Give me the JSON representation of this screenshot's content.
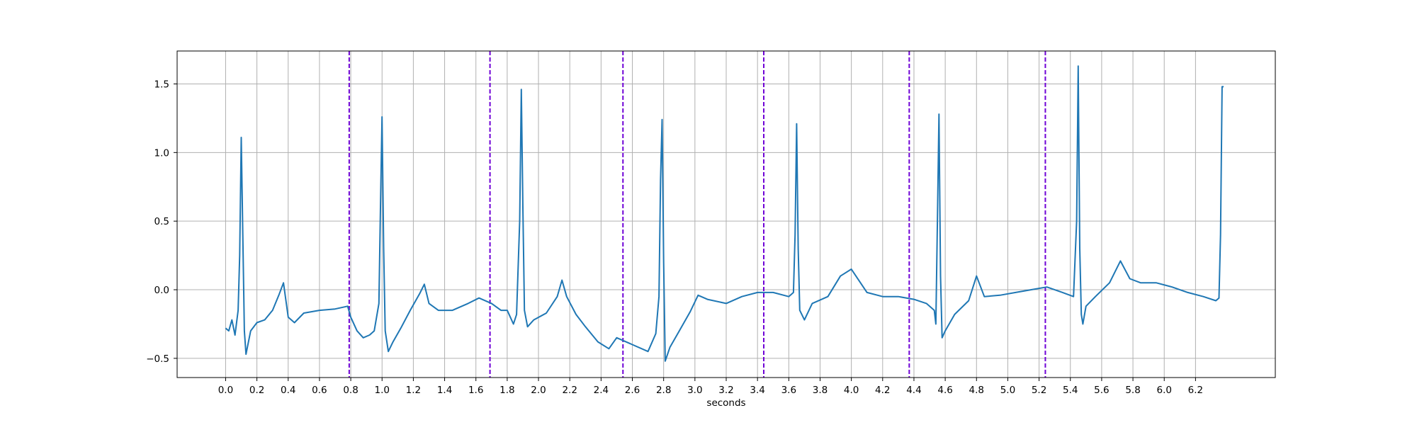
{
  "chart_data": {
    "type": "line",
    "title": "",
    "xlabel": "seconds",
    "ylabel": "",
    "xlim": [
      -0.31,
      6.71
    ],
    "ylim": [
      -0.64,
      1.74
    ],
    "grid": true,
    "legend": "none",
    "colors": {
      "signal": "#1f77b4",
      "markers": "#6f00d6"
    },
    "x_ticks": [
      0.0,
      0.2,
      0.4,
      0.6,
      0.8,
      1.0,
      1.2,
      1.4,
      1.6,
      1.8,
      2.0,
      2.2,
      2.4,
      2.6,
      2.8,
      3.0,
      3.2,
      3.4,
      3.6,
      3.8,
      4.0,
      4.2,
      4.4,
      4.6,
      4.8,
      5.0,
      5.2,
      5.4,
      5.6,
      5.8,
      6.0,
      6.2
    ],
    "x_tick_labels": [
      "0.0",
      "0.2",
      "0.4",
      "0.6",
      "0.8",
      "1.0",
      "1.2",
      "1.4",
      "1.6",
      "1.8",
      "2.0",
      "2.2",
      "2.4",
      "2.6",
      "2.8",
      "3.0",
      "3.2",
      "3.4",
      "3.6",
      "3.8",
      "4.0",
      "4.2",
      "4.4",
      "4.6",
      "4.8",
      "5.0",
      "5.2",
      "5.4",
      "5.6",
      "5.8",
      "6.0",
      "6.2"
    ],
    "y_ticks": [
      -0.5,
      0.0,
      0.5,
      1.0,
      1.5
    ],
    "y_tick_labels": [
      "−0.5",
      "0.0",
      "0.5",
      "1.0",
      "1.5"
    ],
    "vertical_markers": [
      0.79,
      1.69,
      2.54,
      3.44,
      4.37,
      5.24
    ],
    "series": [
      {
        "x": [
          0.0,
          0.02,
          0.04,
          0.06,
          0.08,
          0.09,
          0.1,
          0.11,
          0.12,
          0.13,
          0.16,
          0.2,
          0.25,
          0.3,
          0.34,
          0.37,
          0.4,
          0.44,
          0.5,
          0.6,
          0.7,
          0.78,
          0.8,
          0.84,
          0.88,
          0.92,
          0.95,
          0.98,
          0.99,
          1.0,
          1.01,
          1.02,
          1.04,
          1.07,
          1.12,
          1.18,
          1.24,
          1.27,
          1.3,
          1.36,
          1.45,
          1.55,
          1.62,
          1.7,
          1.76,
          1.8,
          1.84,
          1.86,
          1.88,
          1.89,
          1.9,
          1.91,
          1.93,
          1.97,
          2.05,
          2.12,
          2.15,
          2.18,
          2.24,
          2.3,
          2.38,
          2.45,
          2.5,
          2.6,
          2.7,
          2.75,
          2.77,
          2.78,
          2.79,
          2.8,
          2.81,
          2.84,
          2.9,
          2.97,
          3.02,
          3.08,
          3.2,
          3.3,
          3.4,
          3.5,
          3.6,
          3.63,
          3.64,
          3.65,
          3.66,
          3.67,
          3.7,
          3.75,
          3.85,
          3.93,
          4.0,
          4.1,
          4.2,
          4.3,
          4.4,
          4.48,
          4.53,
          4.54,
          4.55,
          4.56,
          4.57,
          4.58,
          4.6,
          4.66,
          4.75,
          4.8,
          4.85,
          4.95,
          5.05,
          5.15,
          5.25,
          5.35,
          5.42,
          5.44,
          5.45,
          5.46,
          5.47,
          5.48,
          5.5,
          5.56,
          5.65,
          5.72,
          5.78,
          5.85,
          5.95,
          6.05,
          6.15,
          6.25,
          6.33,
          6.35,
          6.36,
          6.37,
          6.38
        ],
        "y": [
          -0.28,
          -0.3,
          -0.22,
          -0.33,
          -0.15,
          0.25,
          1.11,
          0.4,
          -0.3,
          -0.47,
          -0.3,
          -0.24,
          -0.22,
          -0.15,
          -0.04,
          0.05,
          -0.2,
          -0.24,
          -0.17,
          -0.15,
          -0.14,
          -0.12,
          -0.2,
          -0.3,
          -0.35,
          -0.33,
          -0.3,
          -0.1,
          0.6,
          1.26,
          0.3,
          -0.3,
          -0.45,
          -0.38,
          -0.28,
          -0.15,
          -0.03,
          0.04,
          -0.1,
          -0.15,
          -0.15,
          -0.1,
          -0.06,
          -0.1,
          -0.15,
          -0.15,
          -0.25,
          -0.18,
          0.5,
          1.46,
          0.6,
          -0.15,
          -0.27,
          -0.22,
          -0.17,
          -0.05,
          0.07,
          -0.05,
          -0.18,
          -0.27,
          -0.38,
          -0.43,
          -0.35,
          -0.4,
          -0.45,
          -0.32,
          -0.05,
          0.8,
          1.24,
          0.2,
          -0.52,
          -0.42,
          -0.3,
          -0.16,
          -0.04,
          -0.07,
          -0.1,
          -0.05,
          -0.02,
          -0.02,
          -0.05,
          -0.02,
          0.4,
          1.21,
          0.3,
          -0.15,
          -0.22,
          -0.1,
          -0.05,
          0.1,
          0.15,
          -0.02,
          -0.05,
          -0.05,
          -0.07,
          -0.1,
          -0.15,
          -0.25,
          0.5,
          1.28,
          0.1,
          -0.35,
          -0.3,
          -0.18,
          -0.08,
          0.1,
          -0.05,
          -0.04,
          -0.02,
          0.0,
          0.02,
          -0.02,
          -0.05,
          0.5,
          1.63,
          0.3,
          -0.18,
          -0.25,
          -0.12,
          -0.05,
          0.05,
          0.21,
          0.08,
          0.05,
          0.05,
          0.02,
          -0.02,
          -0.05,
          -0.08,
          -0.06,
          0.4,
          1.48,
          1.48
        ]
      }
    ]
  }
}
